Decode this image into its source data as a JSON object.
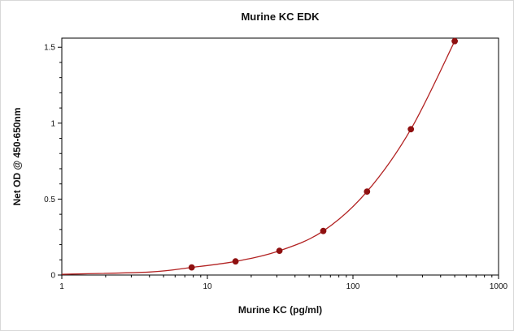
{
  "figure": {
    "background": "#ffffff",
    "frame_border": "#d8d8d8"
  },
  "chart_data": {
    "type": "line",
    "title": "Murine KC EDK",
    "xlabel": "Murine KC (pg/ml)",
    "ylabel": "Net OD @ 450-650nm",
    "x_scale": "log",
    "grid": false,
    "legend": null,
    "xlim": [
      1,
      1000
    ],
    "ylim": [
      0,
      1.56
    ],
    "x_ticks": [
      {
        "v": 1,
        "label": "1"
      },
      {
        "v": 10,
        "label": "10"
      },
      {
        "v": 100,
        "label": "100"
      },
      {
        "v": 1000,
        "label": "1000"
      }
    ],
    "y_ticks": [
      {
        "v": 0,
        "label": "0"
      },
      {
        "v": 0.5,
        "label": "0.5"
      },
      {
        "v": 1,
        "label": "1"
      },
      {
        "v": 1.5,
        "label": "1.5"
      }
    ],
    "y_minor_step": 0.1,
    "axis_color": "#000000",
    "line_color": "#b22222",
    "marker_color": "#8f1010",
    "curve_start": [
      {
        "x": 1,
        "y": 0.005
      },
      {
        "x": 4,
        "y": 0.02
      }
    ],
    "points": [
      {
        "x": 7.8,
        "y": 0.05
      },
      {
        "x": 15.6,
        "y": 0.09
      },
      {
        "x": 31.25,
        "y": 0.16
      },
      {
        "x": 62.5,
        "y": 0.29
      },
      {
        "x": 125,
        "y": 0.55
      },
      {
        "x": 250,
        "y": 0.96
      },
      {
        "x": 500,
        "y": 1.54
      }
    ]
  }
}
